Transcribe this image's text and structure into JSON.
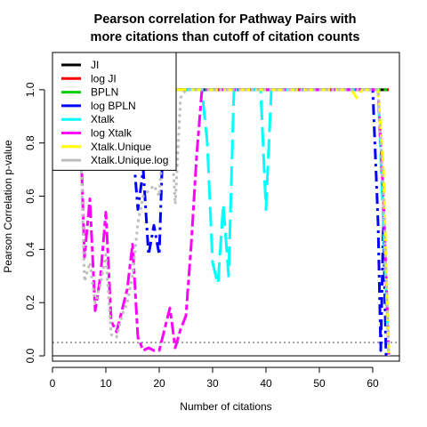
{
  "chart_data": {
    "type": "line",
    "title_lines": [
      "Pearson correlation for Pathway Pairs with",
      "more citations than cutoff of citation counts"
    ],
    "xlabel": "Number of citations",
    "ylabel": "Pearson Correlation p-value",
    "xlim": [
      0,
      65
    ],
    "ylim": [
      -0.02,
      1.14
    ],
    "x_ticks": [
      0,
      10,
      20,
      30,
      40,
      50,
      60
    ],
    "y_ticks": [
      0.0,
      0.2,
      0.4,
      0.6,
      0.8,
      1.0
    ],
    "y_tick_labels": [
      "0.0",
      "0.2",
      "0.4",
      "0.6",
      "0.8",
      "1.0"
    ],
    "reference_lines": [
      {
        "orientation": "horizontal",
        "y": 0.05,
        "style": "dotted",
        "color": "#444444"
      },
      {
        "orientation": "horizontal",
        "y": 0.0,
        "style": "solid",
        "color": "#000000"
      }
    ],
    "legend_position": "top-left",
    "series": [
      {
        "name": "JI",
        "color": "#000000",
        "dash": "solid",
        "x": [
          5,
          10,
          20,
          30,
          40,
          50,
          60,
          61,
          62,
          63
        ],
        "y": [
          1,
          1,
          1,
          1,
          1,
          1,
          1,
          1,
          1,
          1
        ]
      },
      {
        "name": "log JI",
        "color": "#ff0000",
        "dash": "dashed",
        "x": [
          5,
          10,
          20,
          30,
          40,
          50,
          60,
          61,
          62,
          63
        ],
        "y": [
          1,
          1,
          1,
          1,
          1,
          1,
          1,
          1,
          1,
          1
        ]
      },
      {
        "name": "BPLN",
        "color": "#00cd00",
        "dash": "dotted",
        "x": [
          5,
          10,
          20,
          30,
          40,
          50,
          60,
          62,
          63
        ],
        "y": [
          1,
          1,
          1,
          1,
          1,
          1,
          1,
          1,
          1
        ]
      },
      {
        "name": "log BPLN",
        "color": "#0000ff",
        "dash": "dotdash",
        "x": [
          5,
          10,
          14,
          15,
          16,
          17,
          18,
          19,
          20,
          21,
          25,
          30,
          40,
          50,
          60,
          61,
          61.5,
          62,
          62.5,
          63
        ],
        "y": [
          1,
          1,
          1,
          0.8,
          0.55,
          0.7,
          0.38,
          0.49,
          0.38,
          1,
          1,
          1,
          1,
          1,
          1,
          0.5,
          0.02,
          0.5,
          0.0,
          0.0
        ]
      },
      {
        "name": "Xtalk",
        "color": "#00ffff",
        "dash": "longdash",
        "x": [
          5,
          10,
          20,
          27,
          28,
          29,
          30,
          31,
          32,
          33,
          34,
          35,
          39,
          40,
          41,
          50,
          60,
          61,
          62,
          63
        ],
        "y": [
          1,
          1,
          1,
          1,
          1,
          0.8,
          0.35,
          0.27,
          0.57,
          0.3,
          1,
          1,
          1,
          0.55,
          1,
          1,
          1,
          1,
          0.5,
          0.0
        ]
      },
      {
        "name": "log Xtalk",
        "color": "#ff00ff",
        "dash": "twodash",
        "x": [
          5,
          6,
          7,
          8,
          9,
          10,
          11,
          12,
          13,
          14,
          15,
          16,
          17,
          18,
          19,
          20,
          21,
          22,
          23,
          24,
          25,
          26,
          27,
          28,
          29,
          30,
          40,
          50,
          60,
          61,
          62,
          63
        ],
        "y": [
          1,
          0.37,
          0.59,
          0.17,
          0.3,
          0.54,
          0.13,
          0.09,
          0.17,
          0.25,
          0.42,
          0.07,
          0.02,
          0.03,
          0.02,
          0.02,
          0.1,
          0.18,
          0.03,
          0.1,
          0.15,
          0.42,
          0.75,
          1,
          1,
          1,
          1,
          1,
          1,
          1,
          0.6,
          0.0
        ]
      },
      {
        "name": "Xtalk.Unique",
        "color": "#ffff00",
        "dash": "dashed",
        "x": [
          5,
          10,
          20,
          30,
          40,
          50,
          55,
          56,
          57,
          58,
          60,
          61,
          62,
          63
        ],
        "y": [
          1,
          1,
          1,
          1,
          1,
          1,
          1,
          1,
          0.97,
          1,
          1,
          1,
          0.7,
          0.0
        ]
      },
      {
        "name": "Xtalk.Unique.log",
        "color": "#bebebe",
        "dash": "dotted",
        "x": [
          5,
          6,
          7,
          8,
          9,
          10,
          11,
          12,
          13,
          14,
          15,
          16,
          17,
          18,
          19,
          20,
          21,
          22,
          23,
          24,
          25,
          30,
          40,
          50,
          60,
          61,
          62,
          63
        ],
        "y": [
          1,
          0.28,
          0.35,
          0.2,
          0.27,
          0.38,
          0.08,
          0.07,
          0.15,
          0.2,
          0.3,
          0.5,
          0.6,
          0.62,
          0.64,
          0.6,
          0.9,
          0.95,
          0.57,
          0.97,
          1,
          1,
          1,
          1,
          1,
          1,
          0.6,
          0.0
        ]
      }
    ]
  }
}
